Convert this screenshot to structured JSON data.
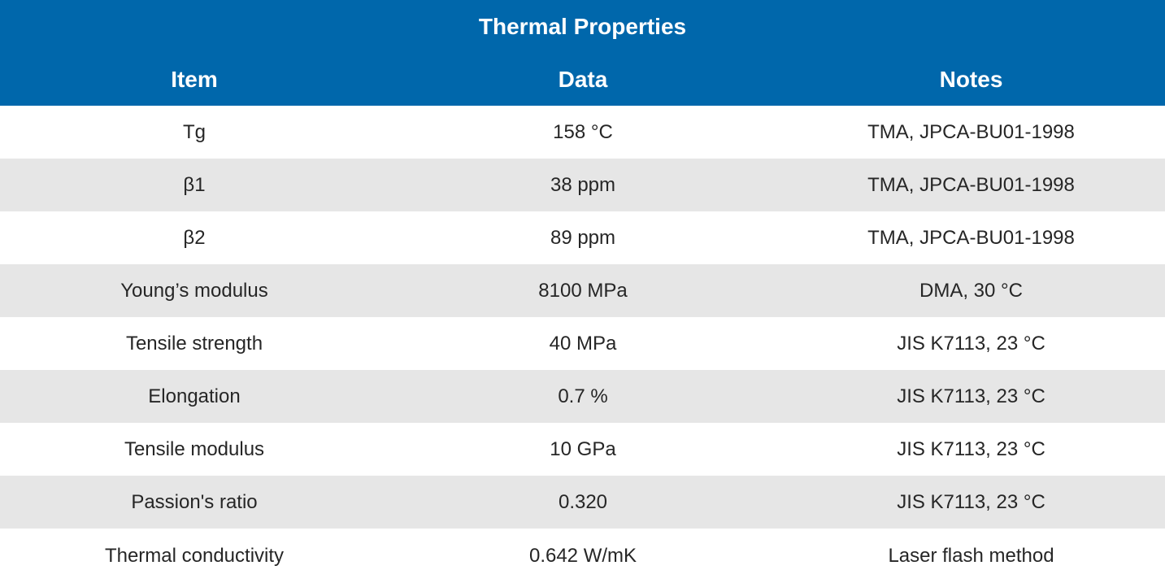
{
  "table": {
    "title": "Thermal Properties",
    "columns": [
      "Item",
      "Data",
      "Notes"
    ],
    "rows": [
      {
        "item": "Tg",
        "data": "158 °C",
        "notes": "TMA, JPCA-BU01-1998"
      },
      {
        "item": "β1",
        "data": "38 ppm",
        "notes": "TMA, JPCA-BU01-1998"
      },
      {
        "item": "β2",
        "data": "89 ppm",
        "notes": "TMA, JPCA-BU01-1998"
      },
      {
        "item": "Young’s modulus",
        "data": "8100 MPa",
        "notes": "DMA, 30 °C"
      },
      {
        "item": "Tensile strength",
        "data": "40 MPa",
        "notes": "JIS K7113, 23 °C"
      },
      {
        "item": "Elongation",
        "data": "0.7 %",
        "notes": "JIS K7113, 23 °C"
      },
      {
        "item": "Tensile modulus",
        "data": "10 GPa",
        "notes": "JIS K7113, 23 °C"
      },
      {
        "item": "Passion's ratio",
        "data": "0.320",
        "notes": "JIS K7113, 23 °C"
      },
      {
        "item": "Thermal conductivity",
        "data": "0.642 W/mK",
        "notes": "Laser flash method"
      }
    ]
  },
  "colors": {
    "header_bg": "#0067ab",
    "header_text": "#ffffff",
    "row_alt_bg": "#e6e6e6",
    "row_bg": "#ffffff",
    "body_text": "#262626"
  }
}
